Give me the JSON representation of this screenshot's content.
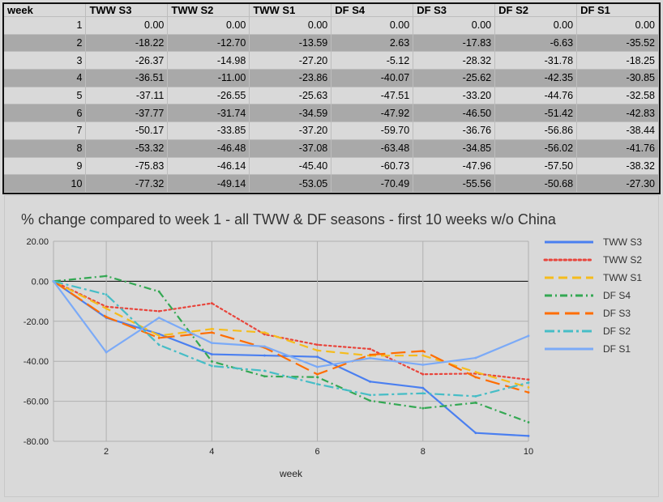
{
  "table": {
    "headers": [
      "week",
      "TWW S3",
      "TWW S2",
      "TWW S1",
      "DF S4",
      "DF S3",
      "DF S2",
      "DF S1"
    ],
    "rows": [
      [
        "1",
        "0.00",
        "0.00",
        "0.00",
        "0.00",
        "0.00",
        "0.00",
        "0.00"
      ],
      [
        "2",
        "-18.22",
        "-12.70",
        "-13.59",
        "2.63",
        "-17.83",
        "-6.63",
        "-35.52"
      ],
      [
        "3",
        "-26.37",
        "-14.98",
        "-27.20",
        "-5.12",
        "-28.32",
        "-31.78",
        "-18.25"
      ],
      [
        "4",
        "-36.51",
        "-11.00",
        "-23.86",
        "-40.07",
        "-25.62",
        "-42.35",
        "-30.85"
      ],
      [
        "5",
        "-37.11",
        "-26.55",
        "-25.63",
        "-47.51",
        "-33.20",
        "-44.76",
        "-32.58"
      ],
      [
        "6",
        "-37.77",
        "-31.74",
        "-34.59",
        "-47.92",
        "-46.50",
        "-51.42",
        "-42.83"
      ],
      [
        "7",
        "-50.17",
        "-33.85",
        "-37.20",
        "-59.70",
        "-36.76",
        "-56.86",
        "-38.44"
      ],
      [
        "8",
        "-53.32",
        "-46.48",
        "-37.08",
        "-63.48",
        "-34.85",
        "-56.02",
        "-41.76"
      ],
      [
        "9",
        "-75.83",
        "-46.14",
        "-45.40",
        "-60.73",
        "-47.96",
        "-57.50",
        "-38.32"
      ],
      [
        "10",
        "-77.32",
        "-49.14",
        "-53.05",
        "-70.49",
        "-55.56",
        "-50.68",
        "-27.30"
      ]
    ]
  },
  "chart_data": {
    "type": "line",
    "title": "% change compared to week 1 - all TWW & DF seasons - first 10 weeks w/o China",
    "xlabel": "week",
    "ylabel": "",
    "x": [
      1,
      2,
      3,
      4,
      5,
      6,
      7,
      8,
      9,
      10
    ],
    "xticks": [
      2,
      4,
      6,
      8,
      10
    ],
    "xlim": [
      1,
      10
    ],
    "ylim": [
      -80,
      20
    ],
    "yticks": [
      20,
      0,
      -20,
      -40,
      -60,
      -80
    ],
    "ytick_labels": [
      "20.00",
      "0.00",
      "-20.00",
      "-40.00",
      "-60.00",
      "-80.00"
    ],
    "grid": true,
    "legend_position": "right",
    "series": [
      {
        "name": "TWW S3",
        "color": "#4a7ff0",
        "dash": "solid",
        "values": [
          0,
          -18.22,
          -26.37,
          -36.51,
          -37.11,
          -37.77,
          -50.17,
          -53.32,
          -75.83,
          -77.32
        ]
      },
      {
        "name": "TWW S2",
        "color": "#e8453c",
        "dash": "dot",
        "values": [
          0,
          -12.7,
          -14.98,
          -11.0,
          -26.55,
          -31.74,
          -33.85,
          -46.48,
          -46.14,
          -49.14
        ]
      },
      {
        "name": "TWW S1",
        "color": "#f5bc1c",
        "dash": "dash",
        "values": [
          0,
          -13.59,
          -27.2,
          -23.86,
          -25.63,
          -34.59,
          -37.2,
          -37.08,
          -45.4,
          -53.05
        ]
      },
      {
        "name": "DF S4",
        "color": "#34a853",
        "dash": "dashdot",
        "values": [
          0,
          2.63,
          -5.12,
          -40.07,
          -47.51,
          -47.92,
          -59.7,
          -63.48,
          -60.73,
          -70.49
        ]
      },
      {
        "name": "DF S3",
        "color": "#ff6d01",
        "dash": "longdash",
        "values": [
          0,
          -17.83,
          -28.32,
          -25.62,
          -33.2,
          -46.5,
          -36.76,
          -34.85,
          -47.96,
          -55.56
        ]
      },
      {
        "name": "DF S2",
        "color": "#46bdc6",
        "dash": "dashdot2",
        "values": [
          0,
          -6.63,
          -31.78,
          -42.35,
          -44.76,
          -51.42,
          -56.86,
          -56.02,
          -57.5,
          -50.68
        ]
      },
      {
        "name": "DF S1",
        "color": "#7baaf7",
        "dash": "solid",
        "values": [
          0,
          -35.52,
          -18.25,
          -30.85,
          -32.58,
          -42.83,
          -38.44,
          -41.76,
          -38.32,
          -27.3
        ]
      }
    ]
  }
}
